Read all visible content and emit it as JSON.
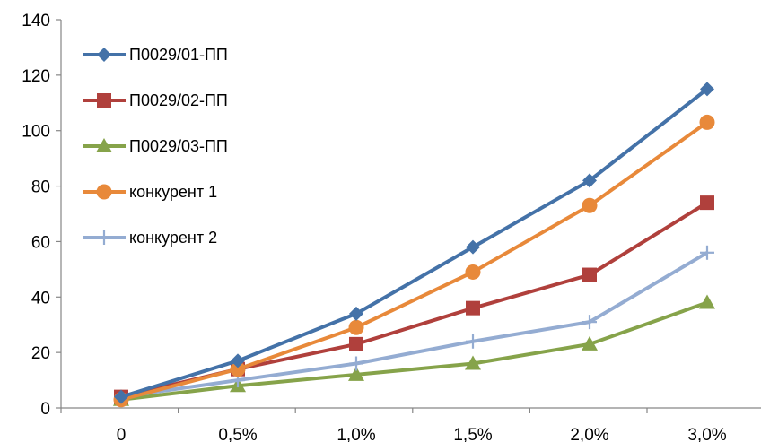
{
  "chart_data": {
    "type": "line",
    "categories": [
      "0",
      "0,5%",
      "1,0%",
      "1,5%",
      "2,0%",
      "3,0%"
    ],
    "ylim": [
      0,
      140
    ],
    "yticks": [
      "0",
      "20",
      "40",
      "60",
      "80",
      "100",
      "120",
      "140"
    ],
    "grid": false,
    "legend_position": "top-left",
    "series": [
      {
        "name": "П0029/01-ПП",
        "color": "#4472a8",
        "marker": "diamond",
        "values": [
          4,
          17,
          34,
          58,
          82,
          115
        ]
      },
      {
        "name": "П0029/02-ПП",
        "color": "#b0403c",
        "marker": "square",
        "values": [
          4,
          14,
          23,
          36,
          48,
          74
        ]
      },
      {
        "name": "П0029/03-ПП",
        "color": "#86a34a",
        "marker": "triangle",
        "values": [
          3,
          8,
          12,
          16,
          23,
          38
        ]
      },
      {
        "name": "конкурент 1",
        "color": "#e8893a",
        "marker": "circle",
        "values": [
          3,
          14,
          29,
          49,
          73,
          103
        ]
      },
      {
        "name": "конкурент 2",
        "color": "#94acd2",
        "marker": "plus",
        "values": [
          4,
          10,
          16,
          24,
          31,
          56
        ]
      }
    ]
  }
}
